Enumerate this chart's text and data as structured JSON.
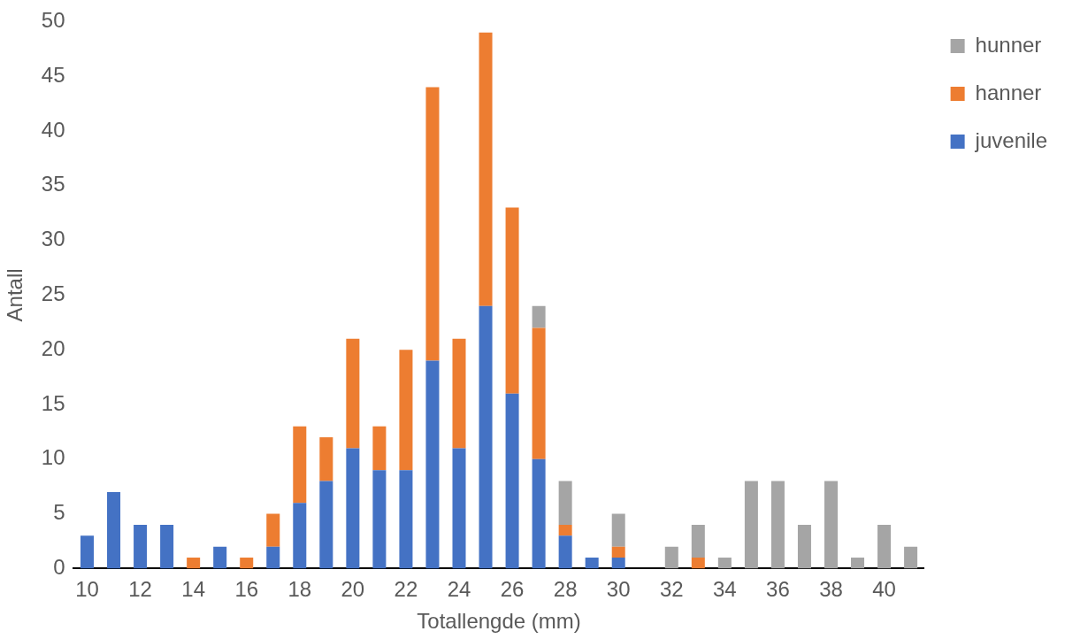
{
  "chart_data": {
    "type": "bar",
    "stacked": true,
    "xlabel": "Totallengde (mm)",
    "ylabel": "Antall",
    "categories": [
      "10",
      null,
      "12",
      null,
      "14",
      null,
      "16",
      null,
      "18",
      null,
      "20",
      null,
      "22",
      null,
      "24",
      null,
      "26",
      null,
      "28",
      null,
      "30",
      null,
      "32",
      null,
      "34",
      null,
      "36",
      null,
      "38",
      null,
      "40",
      null
    ],
    "series": [
      {
        "name": "juvenile",
        "color": "#4472c4",
        "values": [
          3,
          7,
          4,
          4,
          0,
          2,
          0,
          2,
          6,
          8,
          11,
          9,
          9,
          19,
          11,
          24,
          16,
          10,
          3,
          1,
          1,
          0,
          0,
          0,
          0,
          0,
          0,
          0,
          0,
          0,
          0,
          0
        ]
      },
      {
        "name": "hanner",
        "color": "#ed7d31",
        "values": [
          0,
          0,
          0,
          0,
          1,
          0,
          1,
          3,
          7,
          4,
          10,
          4,
          11,
          25,
          10,
          25,
          17,
          12,
          1,
          0,
          1,
          0,
          0,
          1,
          0,
          0,
          0,
          0,
          0,
          0,
          0,
          0
        ]
      },
      {
        "name": "hunner",
        "color": "#a5a5a5",
        "values": [
          0,
          0,
          0,
          0,
          0,
          0,
          0,
          0,
          0,
          0,
          0,
          0,
          0,
          0,
          0,
          0,
          0,
          2,
          4,
          0,
          3,
          0,
          2,
          3,
          1,
          8,
          8,
          4,
          8,
          1,
          4,
          2
        ]
      }
    ],
    "ylim": [
      0,
      50
    ],
    "yticks": [
      0,
      5,
      10,
      15,
      20,
      25,
      30,
      35,
      40,
      45,
      50
    ],
    "grid": false,
    "legend": "top right"
  }
}
